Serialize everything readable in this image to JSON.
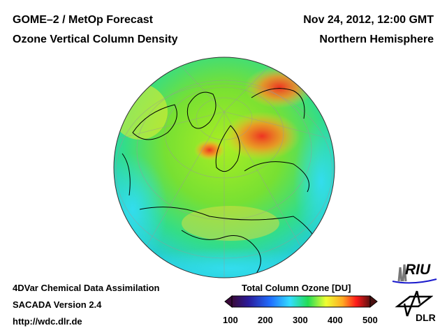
{
  "header": {
    "title_left_1": "GOME–2 / MetOp Forecast",
    "title_left_2": "Ozone Vertical Column Density",
    "title_right_1": "Nov 24, 2012, 12:00 GMT",
    "title_right_2": "Northern Hemisphere"
  },
  "footer": {
    "line1": "4DVar Chemical Data Assimilation",
    "line2": "SACADA Version 2.4",
    "line3": "http://wdc.dlr.de"
  },
  "colorbar": {
    "title": "Total Column Ozone [DU]",
    "ticks": [
      "100",
      "200",
      "300",
      "400",
      "500"
    ],
    "range": [
      100,
      500
    ],
    "colors": [
      "#3a0a3a",
      "#2a1a9a",
      "#1f6fff",
      "#33ddff",
      "#22dd55",
      "#eeff33",
      "#ffaa22",
      "#ff1a1a",
      "#5a1010"
    ]
  },
  "logos": {
    "riu": "RIU",
    "dlr": "DLR"
  }
}
